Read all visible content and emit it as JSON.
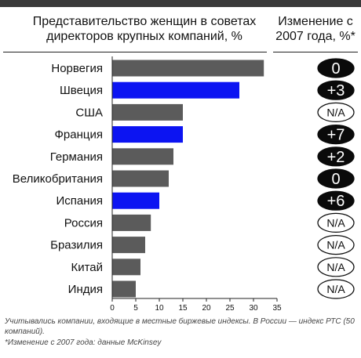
{
  "header": {
    "title_line1": "Представительство женщин в советах",
    "title_line2": "директоров крупных компаний, %",
    "change_line1": "Изменение с",
    "change_line2": "2007 года, %*"
  },
  "colors": {
    "bar_default": "#5b5b5b",
    "bar_highlight": "#0c14f2",
    "badge_dark": "#0a0a0a",
    "badge_light": "#ffffff"
  },
  "chart_data": {
    "type": "bar",
    "orientation": "horizontal",
    "categories": [
      "Норвегия",
      "Швеция",
      "США",
      "Франция",
      "Германия",
      "Великобритания",
      "Испания",
      "Россия",
      "Бразилия",
      "Китай",
      "Индия"
    ],
    "values": [
      32.2,
      27.0,
      15.0,
      15.0,
      13.0,
      12.0,
      10.0,
      8.2,
      7.0,
      6.0,
      5.0
    ],
    "highlighted": [
      false,
      true,
      false,
      true,
      false,
      false,
      true,
      false,
      false,
      false,
      false
    ],
    "change_since_2007": [
      "0",
      "+3",
      "N/A",
      "+7",
      "+2",
      "0",
      "+6",
      "N/A",
      "N/A",
      "N/A",
      "N/A"
    ],
    "xlim": [
      0,
      35
    ],
    "xticks": [
      "0",
      "5",
      "10",
      "15",
      "20",
      "25",
      "30",
      "35"
    ],
    "grid": false
  },
  "notes": {
    "note1": "Учитывались компании, входящие в местные биржевые индексы. В России — индекс РТС (50 компаний).",
    "note2": "*Изменение с 2007 года: данные McKinsey"
  }
}
